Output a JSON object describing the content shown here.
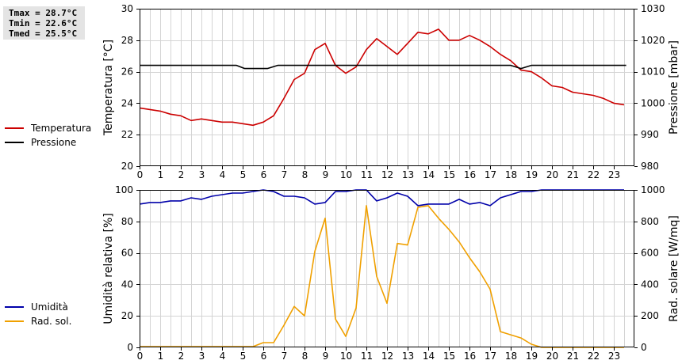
{
  "stats": {
    "tmax": "Tmax = 28.7°C",
    "tmin": "Tmin = 22.6°C",
    "tmed": "Tmed = 25.5°C"
  },
  "legend_top": [
    {
      "label": "Temperatura",
      "color": "#cc0000"
    },
    {
      "label": "Pressione",
      "color": "#000000"
    }
  ],
  "legend_bottom": [
    {
      "label": "Umidità",
      "color": "#0000aa"
    },
    {
      "label": "Rad. sol.",
      "color": "#f0a000"
    }
  ],
  "chart_data": [
    {
      "type": "line",
      "ylabel": "Temperatura [°C]",
      "y2label": "Pressione [mbar]",
      "xlim": [
        0,
        24
      ],
      "ylim": [
        20,
        30
      ],
      "y2lim": [
        980,
        1030
      ],
      "xticks": [
        "0",
        "1",
        "2",
        "3",
        "4",
        "5",
        "6",
        "7",
        "8",
        "9",
        "10",
        "11",
        "12",
        "13",
        "14",
        "15",
        "16",
        "17",
        "18",
        "19",
        "20",
        "21",
        "22",
        "23"
      ],
      "yticks": [
        "20",
        "22",
        "24",
        "26",
        "28",
        "30"
      ],
      "y2ticks": [
        "980",
        "990",
        "1000",
        "1010",
        "1020",
        "1030"
      ],
      "grid": true,
      "series": [
        {
          "name": "Temperatura",
          "axis": "left",
          "color": "#cc0000",
          "x": [
            0,
            0.5,
            1,
            1.5,
            2,
            2.5,
            3,
            3.5,
            4,
            4.5,
            5,
            5.5,
            6,
            6.5,
            7,
            7.5,
            8,
            8.5,
            9,
            9.5,
            10,
            10.5,
            11,
            11.5,
            12,
            12.5,
            13,
            13.5,
            14,
            14.5,
            15,
            15.5,
            16,
            16.5,
            17,
            17.5,
            18,
            18.5,
            19,
            19.5,
            20,
            20.5,
            21,
            21.5,
            22,
            22.5,
            23,
            23.5
          ],
          "values": [
            23.7,
            23.6,
            23.5,
            23.3,
            23.2,
            22.9,
            23.0,
            22.9,
            22.8,
            22.8,
            22.7,
            22.6,
            22.8,
            23.2,
            24.3,
            25.5,
            25.9,
            27.4,
            27.8,
            26.4,
            25.9,
            26.3,
            27.4,
            28.1,
            27.6,
            27.1,
            27.8,
            28.5,
            28.4,
            28.7,
            28.0,
            28.0,
            28.3,
            28.0,
            27.6,
            27.1,
            26.7,
            26.1,
            26.0,
            25.6,
            25.1,
            25.0,
            24.7,
            24.6,
            24.5,
            24.3,
            24.0,
            23.9
          ]
        },
        {
          "name": "Pressione",
          "axis": "right",
          "color": "#000000",
          "x": [
            0,
            4.7,
            5.1,
            5.5,
            6,
            6.2,
            6.7,
            7,
            10,
            15,
            18,
            18.5,
            19,
            23.6
          ],
          "values": [
            1012,
            1012,
            1011,
            1011,
            1011,
            1011,
            1012,
            1012,
            1012,
            1012,
            1012,
            1011,
            1012,
            1012
          ]
        }
      ]
    },
    {
      "type": "line",
      "ylabel": "Umidità relativa [%]",
      "y2label": "Rad. solare [W/mq]",
      "xlim": [
        0,
        24
      ],
      "ylim": [
        0,
        100
      ],
      "y2lim": [
        0,
        1000
      ],
      "xticks": [
        "0",
        "1",
        "2",
        "3",
        "4",
        "5",
        "6",
        "7",
        "8",
        "9",
        "10",
        "11",
        "12",
        "13",
        "14",
        "15",
        "16",
        "17",
        "18",
        "19",
        "20",
        "21",
        "22",
        "23"
      ],
      "yticks": [
        "0",
        "20",
        "40",
        "60",
        "80",
        "100"
      ],
      "y2ticks": [
        "0",
        "200",
        "400",
        "600",
        "800",
        "1000"
      ],
      "grid": true,
      "series": [
        {
          "name": "Umidità",
          "axis": "left",
          "color": "#0000aa",
          "x": [
            0,
            0.5,
            1,
            1.5,
            2,
            2.5,
            3,
            3.5,
            4,
            4.5,
            5,
            5.5,
            6,
            6.5,
            7,
            7.5,
            8,
            8.5,
            9,
            9.5,
            10,
            10.5,
            11,
            11.5,
            12,
            12.5,
            13,
            13.5,
            14,
            14.5,
            15,
            15.5,
            16,
            16.5,
            17,
            17.5,
            18,
            18.5,
            19,
            19.5,
            20,
            20.5,
            21,
            21.5,
            22,
            22.5,
            23,
            23.5
          ],
          "values": [
            91,
            92,
            92,
            93,
            93,
            95,
            94,
            96,
            97,
            98,
            98,
            99,
            100,
            99,
            96,
            96,
            95,
            91,
            92,
            99,
            99,
            100,
            100,
            93,
            95,
            98,
            96,
            90,
            91,
            91,
            91,
            94,
            91,
            92,
            90,
            95,
            97,
            99,
            99,
            100,
            100,
            100,
            100,
            100,
            100,
            100,
            100,
            100
          ]
        },
        {
          "name": "Rad. sol.",
          "axis": "right",
          "color": "#f0a000",
          "x": [
            0,
            0.5,
            1,
            1.5,
            2,
            2.5,
            3,
            3.5,
            4,
            4.5,
            5,
            5.5,
            6,
            6.5,
            7,
            7.5,
            8,
            8.5,
            9,
            9.5,
            10,
            10.5,
            11,
            11.5,
            12,
            12.5,
            13,
            13.5,
            14,
            14.5,
            15,
            15.5,
            16,
            16.5,
            17,
            17.5,
            18,
            18.5,
            19,
            19.5,
            20,
            20.5,
            21,
            21.5,
            22,
            22.5,
            23,
            23.5
          ],
          "values": [
            5,
            5,
            5,
            5,
            5,
            5,
            5,
            5,
            5,
            5,
            5,
            5,
            30,
            30,
            140,
            260,
            200,
            610,
            820,
            180,
            70,
            250,
            900,
            450,
            280,
            660,
            650,
            890,
            900,
            820,
            750,
            670,
            570,
            480,
            370,
            100,
            80,
            60,
            20,
            0,
            0,
            0,
            0,
            0,
            0,
            0,
            0,
            0
          ]
        }
      ]
    }
  ]
}
